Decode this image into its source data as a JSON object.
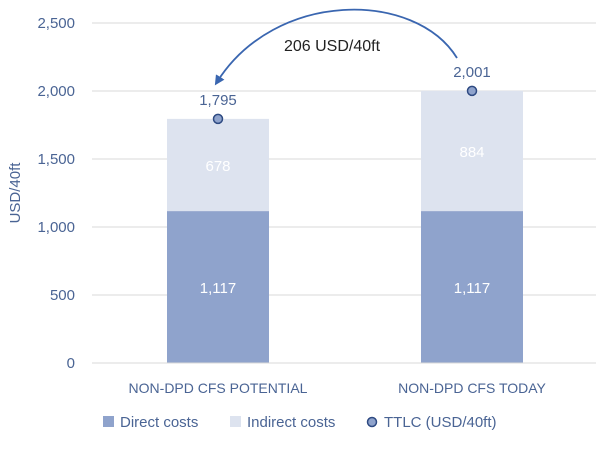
{
  "chart_data": {
    "type": "bar",
    "stacked": true,
    "ylabel": "USD/40ft",
    "ylim": [
      0,
      2500
    ],
    "yticks": [
      "0",
      "500",
      "1,000",
      "1,500",
      "2,000",
      "2,500"
    ],
    "ytick_values": [
      0,
      500,
      1000,
      1500,
      2000,
      2500
    ],
    "grid": true,
    "legend_position": "bottom",
    "categories": [
      "NON-DPD CFS POTENTIAL",
      "NON-DPD CFS TODAY"
    ],
    "series": [
      {
        "name": "Direct costs",
        "values": [
          1117,
          1117
        ],
        "labels": [
          "1,117",
          "1,117"
        ],
        "color": "#8fa3cc"
      },
      {
        "name": "Indirect costs",
        "values": [
          678,
          884
        ],
        "labels": [
          "678",
          "884"
        ],
        "color": "#dde3ef"
      }
    ],
    "markers": {
      "name": "TTLC (USD/40ft)",
      "values": [
        1795,
        2001
      ],
      "labels": [
        "1,795",
        "2,001"
      ],
      "color": "#8fa3cc",
      "edge_color": "#2e4a82"
    },
    "annotation": {
      "text": "206 USD/40ft",
      "from": "NON-DPD CFS TODAY",
      "to": "NON-DPD CFS POTENTIAL"
    },
    "colors": {
      "axis_text": "#4a6494",
      "grid": "#d9d9d9",
      "arrow": "#3a66b0",
      "inner_label": "#ffffff",
      "annotation_text": "#222222"
    }
  }
}
